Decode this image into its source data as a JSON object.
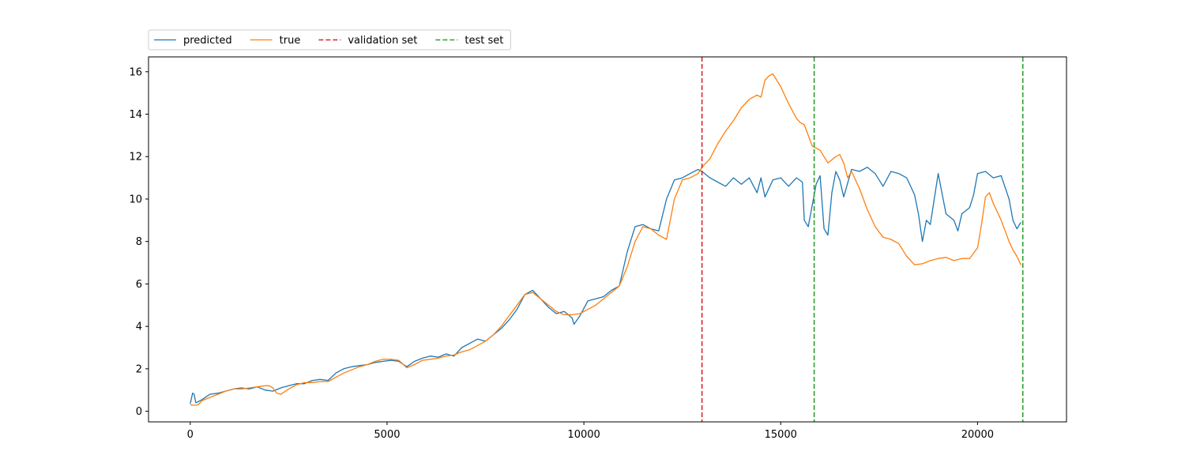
{
  "chart_data": {
    "type": "line",
    "title": "",
    "xlabel": "",
    "ylabel": "",
    "xlim": [
      -1060,
      22260
    ],
    "ylim": [
      -0.5,
      16.7
    ],
    "xticks": [
      0,
      5000,
      10000,
      15000,
      20000
    ],
    "xtick_labels": [
      "0",
      "5000",
      "10000",
      "15000",
      "20000"
    ],
    "yticks": [
      0,
      2,
      4,
      6,
      8,
      10,
      12,
      14,
      16
    ],
    "ytick_labels": [
      "0",
      "2",
      "4",
      "6",
      "8",
      "10",
      "12",
      "14",
      "16"
    ],
    "grid": false,
    "legend_position": "above-left",
    "series": [
      {
        "name": "predicted",
        "color": "#1f77b4",
        "x": [
          0,
          60,
          100,
          140,
          200,
          300,
          500,
          700,
          900,
          1100,
          1300,
          1500,
          1700,
          1900,
          2100,
          2300,
          2500,
          2700,
          2900,
          3100,
          3300,
          3500,
          3700,
          3900,
          4100,
          4300,
          4500,
          4700,
          4900,
          5100,
          5300,
          5500,
          5700,
          5900,
          6100,
          6300,
          6500,
          6700,
          6900,
          7100,
          7300,
          7500,
          7700,
          7900,
          8100,
          8300,
          8500,
          8700,
          8900,
          9100,
          9300,
          9500,
          9700,
          9750,
          9900,
          10100,
          10300,
          10500,
          10700,
          10900,
          11100,
          11300,
          11500,
          11700,
          11900,
          12100,
          12300,
          12500,
          12700,
          12900,
          13000,
          13200,
          13400,
          13600,
          13800,
          14000,
          14200,
          14400,
          14500,
          14600,
          14800,
          15000,
          15200,
          15400,
          15550,
          15600,
          15700,
          15900,
          16000,
          16100,
          16200,
          16300,
          16400,
          16500,
          16600,
          16800,
          17000,
          17200,
          17400,
          17600,
          17800,
          18000,
          18200,
          18400,
          18500,
          18600,
          18700,
          18800,
          19000,
          19200,
          19400,
          19500,
          19600,
          19800,
          19900,
          20000,
          20200,
          20400,
          20600,
          20800,
          20900,
          21000,
          21100
        ],
        "values": [
          0.35,
          0.85,
          0.8,
          0.4,
          0.45,
          0.55,
          0.8,
          0.85,
          0.95,
          1.05,
          1.1,
          1.05,
          1.15,
          1.0,
          0.95,
          1.1,
          1.2,
          1.3,
          1.3,
          1.45,
          1.5,
          1.45,
          1.8,
          2.0,
          2.1,
          2.15,
          2.2,
          2.3,
          2.35,
          2.4,
          2.35,
          2.1,
          2.35,
          2.5,
          2.6,
          2.55,
          2.7,
          2.6,
          3.0,
          3.2,
          3.4,
          3.3,
          3.6,
          3.9,
          4.3,
          4.8,
          5.5,
          5.7,
          5.3,
          4.9,
          4.6,
          4.7,
          4.4,
          4.1,
          4.5,
          5.2,
          5.3,
          5.4,
          5.7,
          5.9,
          7.5,
          8.7,
          8.8,
          8.6,
          8.5,
          10.0,
          10.9,
          11.0,
          11.2,
          11.4,
          11.3,
          11.0,
          10.8,
          10.6,
          11.0,
          10.7,
          11.0,
          10.3,
          11.0,
          10.1,
          10.9,
          11.0,
          10.6,
          11.0,
          10.8,
          9.0,
          8.7,
          10.7,
          11.1,
          8.6,
          8.3,
          10.3,
          11.3,
          10.9,
          10.1,
          11.4,
          11.3,
          11.5,
          11.2,
          10.6,
          11.3,
          11.2,
          11.0,
          10.2,
          9.3,
          8.0,
          9.0,
          8.8,
          11.2,
          9.3,
          9.0,
          8.5,
          9.3,
          9.6,
          10.2,
          11.2,
          11.3,
          11.0,
          11.1,
          10.0,
          9.0,
          8.6,
          8.9
        ]
      },
      {
        "name": "true",
        "color": "#ff7f0e",
        "x": [
          0,
          100,
          200,
          300,
          500,
          700,
          900,
          1100,
          1300,
          1500,
          1700,
          1900,
          2000,
          2100,
          2200,
          2300,
          2500,
          2700,
          2900,
          3100,
          3300,
          3500,
          3700,
          3900,
          4100,
          4300,
          4500,
          4700,
          4900,
          5100,
          5300,
          5500,
          5700,
          5900,
          6100,
          6300,
          6500,
          6700,
          6900,
          7100,
          7300,
          7500,
          7700,
          7900,
          8100,
          8300,
          8500,
          8700,
          8900,
          9100,
          9300,
          9500,
          9700,
          9900,
          10100,
          10300,
          10500,
          10700,
          10900,
          11100,
          11300,
          11500,
          11700,
          11900,
          12100,
          12300,
          12500,
          12700,
          12900,
          13000,
          13200,
          13400,
          13600,
          13800,
          14000,
          14200,
          14300,
          14400,
          14500,
          14600,
          14700,
          14800,
          15000,
          15200,
          15400,
          15500,
          15600,
          15700,
          15800,
          16000,
          16200,
          16400,
          16500,
          16600,
          16700,
          16800,
          17000,
          17200,
          17400,
          17600,
          17800,
          18000,
          18200,
          18400,
          18600,
          18800,
          19000,
          19200,
          19400,
          19600,
          19800,
          20000,
          20100,
          20200,
          20300,
          20400,
          20600,
          20800,
          20900,
          21000,
          21100
        ],
        "values": [
          0.3,
          0.28,
          0.3,
          0.5,
          0.65,
          0.8,
          0.95,
          1.05,
          1.05,
          1.1,
          1.15,
          1.2,
          1.2,
          1.1,
          0.85,
          0.8,
          1.05,
          1.25,
          1.35,
          1.35,
          1.4,
          1.4,
          1.6,
          1.8,
          1.95,
          2.1,
          2.2,
          2.35,
          2.45,
          2.45,
          2.4,
          2.05,
          2.2,
          2.4,
          2.45,
          2.5,
          2.6,
          2.65,
          2.8,
          2.9,
          3.1,
          3.3,
          3.6,
          4.0,
          4.5,
          5.0,
          5.5,
          5.6,
          5.3,
          5.0,
          4.7,
          4.55,
          4.55,
          4.6,
          4.8,
          5.0,
          5.3,
          5.6,
          5.9,
          6.8,
          8.0,
          8.7,
          8.6,
          8.3,
          8.1,
          10.0,
          10.9,
          11.0,
          11.2,
          11.5,
          11.9,
          12.6,
          13.2,
          13.7,
          14.3,
          14.7,
          14.8,
          14.9,
          14.8,
          15.6,
          15.8,
          15.9,
          15.3,
          14.5,
          13.8,
          13.6,
          13.5,
          13.0,
          12.5,
          12.3,
          11.7,
          12.0,
          12.1,
          11.7,
          11.0,
          11.3,
          10.5,
          9.5,
          8.7,
          8.2,
          8.1,
          7.9,
          7.3,
          6.9,
          6.95,
          7.1,
          7.2,
          7.25,
          7.1,
          7.2,
          7.2,
          7.7,
          8.8,
          10.1,
          10.3,
          9.8,
          9.0,
          8.0,
          7.6,
          7.3,
          6.9
        ]
      }
    ],
    "vlines": [
      {
        "name": "validation set",
        "color": "#d62728",
        "x": 13000,
        "style": "dashed"
      },
      {
        "name": "test set",
        "color": "#2ca02c",
        "x": 15850,
        "style": "dashed"
      },
      {
        "name": "test set",
        "color": "#2ca02c",
        "x": 21150,
        "style": "dashed"
      }
    ],
    "legend": [
      {
        "label": "predicted",
        "color": "#1f77b4",
        "style": "solid"
      },
      {
        "label": "true",
        "color": "#ff7f0e",
        "style": "solid"
      },
      {
        "label": "validation set",
        "color": "#d62728",
        "style": "dashed"
      },
      {
        "label": "test set",
        "color": "#2ca02c",
        "style": "dashed"
      }
    ]
  }
}
